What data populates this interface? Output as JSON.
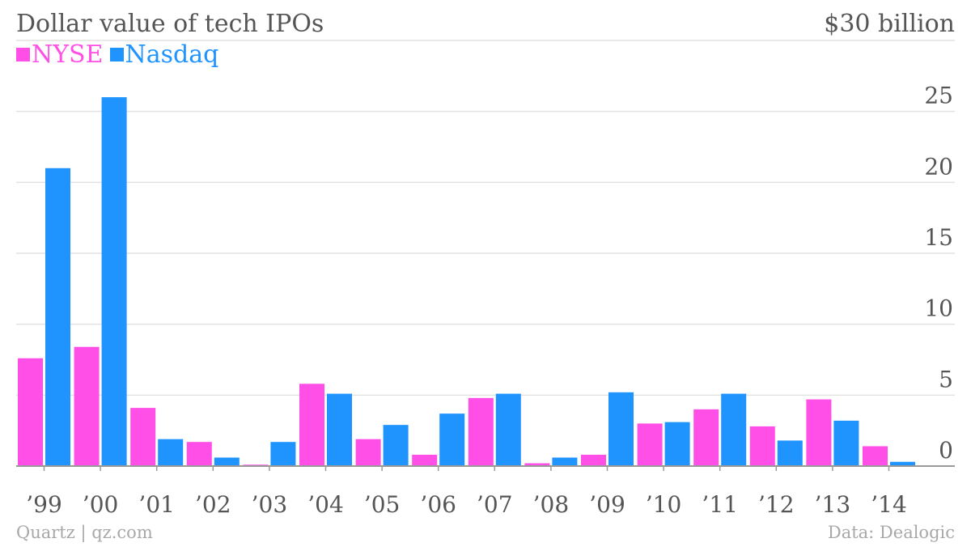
{
  "chart_data": {
    "type": "bar",
    "title": "Dollar value of tech IPOs",
    "unit_label": "$30 billion",
    "categories": [
      "’99",
      "’00",
      "’01",
      "’02",
      "’03",
      "’04",
      "’05",
      "’06",
      "’07",
      "’08",
      "’09",
      "’10",
      "’11",
      "’12",
      "’13",
      "’14"
    ],
    "series": [
      {
        "name": "NYSE",
        "color": "#ff4fe6",
        "values": [
          7.6,
          8.4,
          4.1,
          1.7,
          0.1,
          5.8,
          1.9,
          0.8,
          4.8,
          0.2,
          0.8,
          3.0,
          4.0,
          2.8,
          4.7,
          1.4
        ]
      },
      {
        "name": "Nasdaq",
        "color": "#1f94ff",
        "values": [
          21.0,
          26.0,
          1.9,
          0.6,
          1.7,
          5.1,
          2.9,
          3.7,
          5.1,
          0.6,
          5.2,
          3.1,
          5.1,
          1.8,
          3.2,
          0.3
        ]
      }
    ],
    "ylim": [
      0,
      30
    ],
    "yticks": [
      "0",
      "5",
      "10",
      "15",
      "20",
      "25"
    ],
    "grid": true,
    "legend_position": "top-left"
  },
  "footer": {
    "source_left": "Quartz | qz.com",
    "source_right": "Data: Dealogic"
  }
}
